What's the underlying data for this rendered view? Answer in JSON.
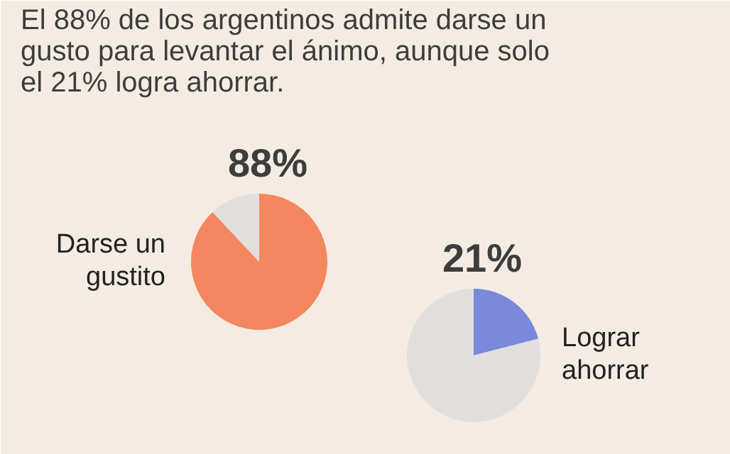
{
  "chart_data": [
    {
      "type": "pie",
      "title": "El 88% de los argentinos admite darse un gusto para levantar el ánimo, aunque solo el 21% logra ahorrar.",
      "categories": [
        "Darse un gustito",
        null
      ],
      "values": [
        88,
        12
      ],
      "colors": [
        "#f4875f",
        "#e0dfdd"
      ],
      "value_labels": [
        "88%",
        null
      ]
    },
    {
      "type": "pie",
      "categories": [
        "Lograr ahorrar",
        null
      ],
      "values": [
        21,
        79
      ],
      "colors": [
        "#7b88db",
        "#e0dfdd"
      ],
      "value_labels": [
        "21%",
        null
      ]
    }
  ]
}
